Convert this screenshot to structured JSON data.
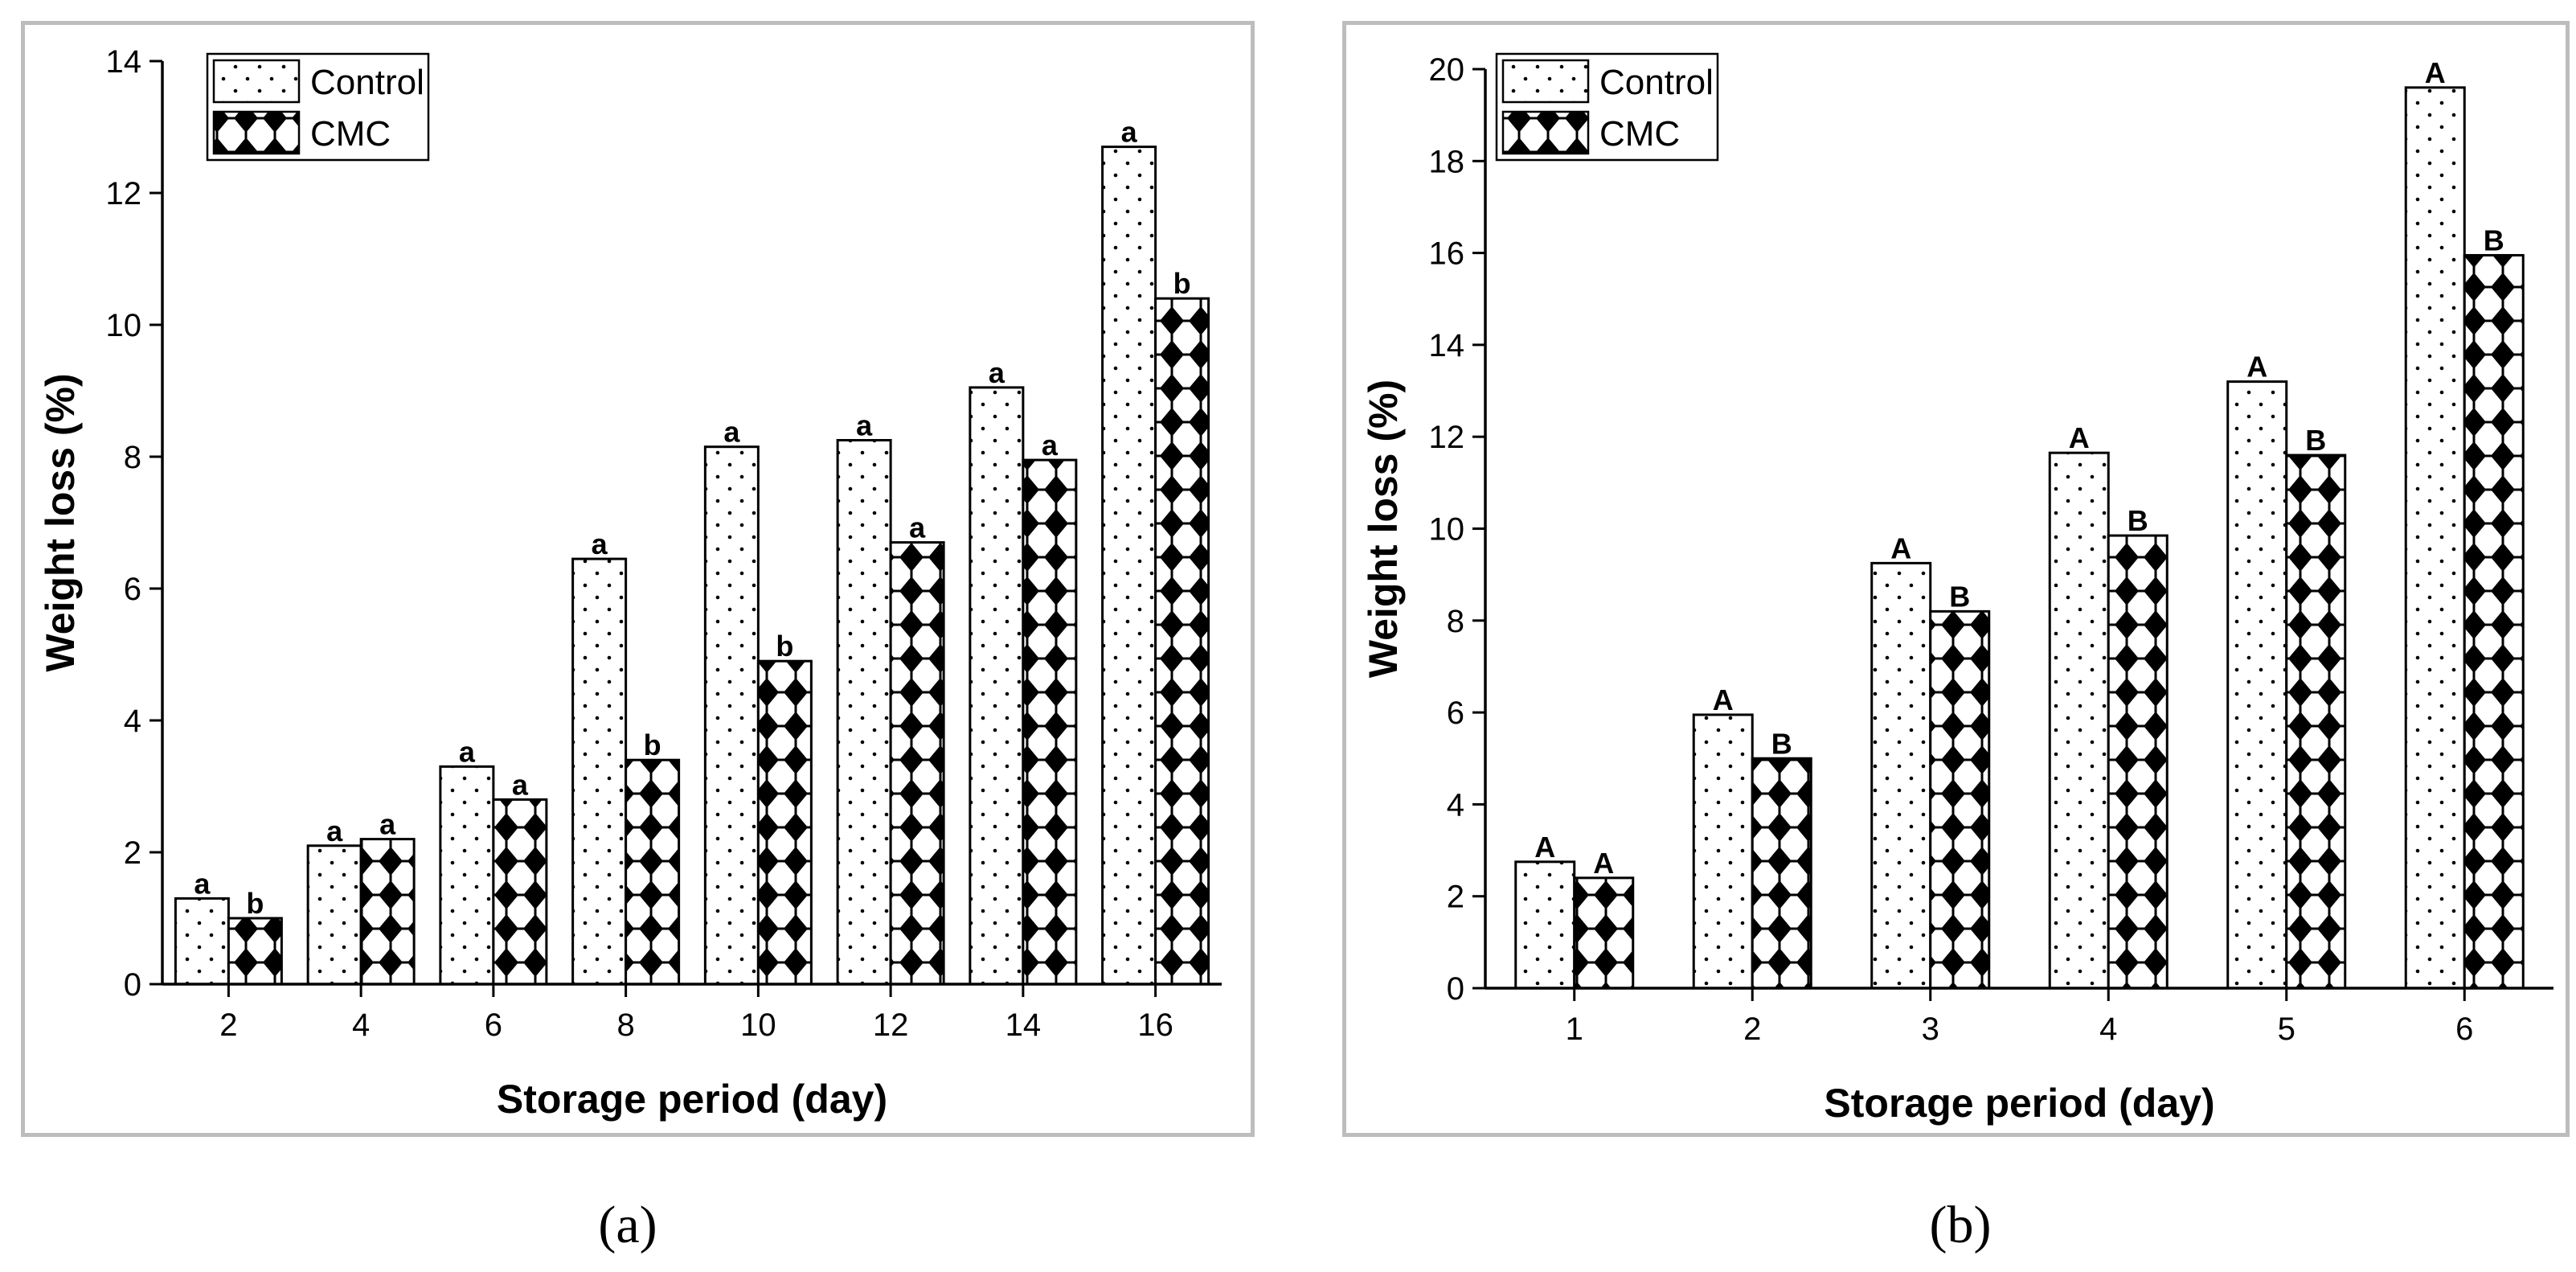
{
  "chart_data": [
    {
      "type": "bar",
      "panel_label": "(a)",
      "xlabel": "Storage period (day)",
      "ylabel": "Weight loss (%)",
      "categories": [
        "2",
        "4",
        "6",
        "8",
        "10",
        "12",
        "14",
        "16"
      ],
      "ylim": [
        0,
        14
      ],
      "yticks": [
        "0",
        "2",
        "4",
        "6",
        "8",
        "10",
        "12",
        "14"
      ],
      "legend_position": "top-left",
      "series": [
        {
          "name": "Control",
          "pattern": "dots",
          "values": [
            1.3,
            2.1,
            3.3,
            6.45,
            8.15,
            8.25,
            9.05,
            12.7
          ],
          "labels": [
            "a",
            "a",
            "a",
            "a",
            "a",
            "a",
            "a",
            "a"
          ]
        },
        {
          "name": "CMC",
          "pattern": "diamonds",
          "values": [
            1.0,
            2.2,
            2.8,
            3.4,
            4.9,
            6.7,
            7.95,
            10.4
          ],
          "labels": [
            "b",
            "a",
            "a",
            "b",
            "b",
            "a",
            "a",
            "b"
          ]
        }
      ]
    },
    {
      "type": "bar",
      "panel_label": "(b)",
      "xlabel": "Storage period (day)",
      "ylabel": "Weight loss (%)",
      "categories": [
        "1",
        "2",
        "3",
        "4",
        "5",
        "6"
      ],
      "ylim": [
        0,
        20
      ],
      "yticks": [
        "0",
        "2",
        "4",
        "6",
        "8",
        "10",
        "12",
        "14",
        "16",
        "18",
        "20"
      ],
      "legend_position": "top-left",
      "series": [
        {
          "name": "Control",
          "pattern": "dots",
          "values": [
            2.75,
            5.95,
            9.25,
            11.65,
            13.2,
            19.6
          ],
          "labels": [
            "A",
            "A",
            "A",
            "A",
            "A",
            "A"
          ]
        },
        {
          "name": "CMC",
          "pattern": "diamonds",
          "values": [
            2.4,
            5.0,
            8.2,
            9.85,
            11.6,
            15.95
          ],
          "labels": [
            "A",
            "B",
            "B",
            "B",
            "B",
            "B"
          ]
        }
      ]
    }
  ]
}
